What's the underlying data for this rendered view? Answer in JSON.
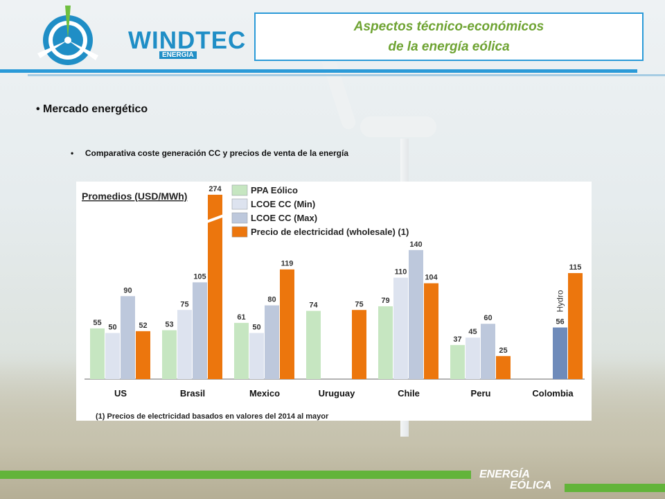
{
  "logo": {
    "name": "WINDTEC",
    "sub": "ENERGÍA"
  },
  "header": {
    "title_line1": "Aspectos técnico-económicos",
    "title_line2": "de la energía eólica"
  },
  "content": {
    "bullet1": "• Mercado energético",
    "bullet2": "•     Comparativa coste generación CC y precios de venta de la energía"
  },
  "footer": {
    "line1": "ENERGÍA",
    "line2": "EÓLICA"
  },
  "colors": {
    "accent_blue": "#2a9ad8",
    "accent_green": "#62b43a",
    "title_green": "#6ea332"
  },
  "chart_data": {
    "type": "bar",
    "title": "Promedios (USD/MWh)",
    "categories": [
      "US",
      "Brasil",
      "Mexico",
      "Uruguay",
      "Chile",
      "Peru",
      "Colombia"
    ],
    "series": [
      {
        "name": "PPA Eólico",
        "color": "#c6e6c1",
        "values": [
          55,
          53,
          61,
          74,
          79,
          37,
          null
        ]
      },
      {
        "name": "LCOE CC (Min)",
        "color": "#dde3ef",
        "values": [
          50,
          75,
          50,
          null,
          110,
          45,
          null
        ]
      },
      {
        "name": "LCOE CC (Max)",
        "color": "#bdc8dc",
        "values": [
          90,
          105,
          80,
          null,
          140,
          60,
          null
        ]
      },
      {
        "name": "Precio de electricidad (wholesale) (1)",
        "color": "#ec760d",
        "values": [
          52,
          274,
          119,
          75,
          104,
          25,
          115
        ]
      }
    ],
    "extra_bars": [
      {
        "category": "Colombia",
        "label": "Hydro",
        "value": 56,
        "color": "#6f8bba"
      }
    ],
    "broken_axis_value": 274,
    "footnote": "(1) Precios de electricidad basados en valores del 2014 al mayor"
  }
}
